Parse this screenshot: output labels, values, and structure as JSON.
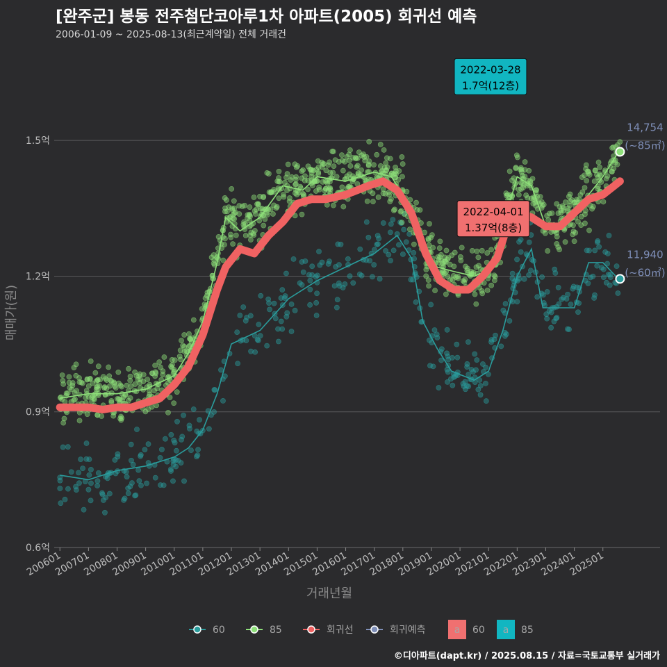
{
  "title": "[완주군] 봉동 전주첨단코아루1차 아파트(2005) 회귀선 예측",
  "subtitle": "2006-01-09 ~ 2025-08-13(최근계약일) 전체 거래건",
  "credit": "©디아파트(dapt.kr) / 2025.08.15 / 자료=국토교통부 실거래가",
  "colors": {
    "s60": "#2a9d9d",
    "s85": "#8ee07a",
    "reg": "#f06262",
    "pred": "#7f8fb8",
    "box60": "#f07070",
    "box85": "#11b6c1"
  },
  "chart_data": {
    "type": "scatter",
    "xlabel": "거래년월",
    "ylabel": "매매가(원)",
    "ylim": [
      0.6,
      1.7
    ],
    "yticks": [
      {
        "v": 0.6,
        "label": "0.6억"
      },
      {
        "v": 0.9,
        "label": "0.9억"
      },
      {
        "v": 1.2,
        "label": "1.2억"
      },
      {
        "v": 1.5,
        "label": "1.5억"
      }
    ],
    "xticks": [
      "200601",
      "200701",
      "200801",
      "200901",
      "201001",
      "201101",
      "201201",
      "201301",
      "201401",
      "201501",
      "201601",
      "201701",
      "201801",
      "201901",
      "202001",
      "202101",
      "202201",
      "202301",
      "202401",
      "202501"
    ],
    "series": [
      {
        "name": "60",
        "key": "s60",
        "trend": [
          [
            2006.0,
            0.76
          ],
          [
            2007.0,
            0.75
          ],
          [
            2007.5,
            0.76
          ],
          [
            2008.0,
            0.77
          ],
          [
            2009.0,
            0.78
          ],
          [
            2010.0,
            0.8
          ],
          [
            2010.5,
            0.82
          ],
          [
            2011.0,
            0.86
          ],
          [
            2011.5,
            0.94
          ],
          [
            2012.0,
            1.05
          ],
          [
            2013.0,
            1.08
          ],
          [
            2014.0,
            1.15
          ],
          [
            2015.0,
            1.19
          ],
          [
            2016.0,
            1.22
          ],
          [
            2017.0,
            1.25
          ],
          [
            2017.8,
            1.29
          ],
          [
            2018.3,
            1.24
          ],
          [
            2018.7,
            1.1
          ],
          [
            2019.2,
            1.04
          ],
          [
            2019.7,
            0.99
          ],
          [
            2020.5,
            0.97
          ],
          [
            2021.0,
            0.99
          ],
          [
            2021.5,
            1.08
          ],
          [
            2022.0,
            1.2
          ],
          [
            2022.5,
            1.26
          ],
          [
            2022.9,
            1.13
          ],
          [
            2023.5,
            1.13
          ],
          [
            2024.0,
            1.13
          ],
          [
            2024.5,
            1.23
          ],
          [
            2025.0,
            1.23
          ],
          [
            2025.6,
            1.19
          ]
        ]
      },
      {
        "name": "85",
        "key": "s85",
        "trend": [
          [
            2006.0,
            0.93
          ],
          [
            2007.0,
            0.94
          ],
          [
            2008.0,
            0.94
          ],
          [
            2009.0,
            0.95
          ],
          [
            2010.0,
            0.98
          ],
          [
            2010.5,
            1.03
          ],
          [
            2011.0,
            1.1
          ],
          [
            2011.5,
            1.23
          ],
          [
            2011.8,
            1.33
          ],
          [
            2012.3,
            1.3
          ],
          [
            2013.0,
            1.33
          ],
          [
            2013.8,
            1.4
          ],
          [
            2014.5,
            1.39
          ],
          [
            2015.0,
            1.42
          ],
          [
            2016.0,
            1.41
          ],
          [
            2017.0,
            1.43
          ],
          [
            2017.6,
            1.42
          ],
          [
            2018.3,
            1.35
          ],
          [
            2018.8,
            1.26
          ],
          [
            2019.2,
            1.22
          ],
          [
            2019.8,
            1.21
          ],
          [
            2020.5,
            1.2
          ],
          [
            2021.2,
            1.22
          ],
          [
            2021.6,
            1.33
          ],
          [
            2022.0,
            1.42
          ],
          [
            2022.5,
            1.4
          ],
          [
            2023.0,
            1.31
          ],
          [
            2023.6,
            1.32
          ],
          [
            2024.0,
            1.35
          ],
          [
            2024.5,
            1.38
          ],
          [
            2025.0,
            1.42
          ],
          [
            2025.6,
            1.48
          ]
        ]
      }
    ],
    "regression": [
      [
        2006.0,
        0.91
      ],
      [
        2007.0,
        0.91
      ],
      [
        2007.5,
        0.905
      ],
      [
        2008.0,
        0.91
      ],
      [
        2008.5,
        0.91
      ],
      [
        2009.0,
        0.92
      ],
      [
        2009.5,
        0.93
      ],
      [
        2010.0,
        0.96
      ],
      [
        2010.5,
        1.0
      ],
      [
        2011.0,
        1.07
      ],
      [
        2011.5,
        1.17
      ],
      [
        2011.8,
        1.22
      ],
      [
        2012.3,
        1.26
      ],
      [
        2012.8,
        1.25
      ],
      [
        2013.3,
        1.29
      ],
      [
        2013.8,
        1.32
      ],
      [
        2014.3,
        1.36
      ],
      [
        2014.8,
        1.37
      ],
      [
        2015.3,
        1.37
      ],
      [
        2016.0,
        1.38
      ],
      [
        2016.8,
        1.4
      ],
      [
        2017.3,
        1.41
      ],
      [
        2017.8,
        1.39
      ],
      [
        2018.3,
        1.34
      ],
      [
        2018.8,
        1.25
      ],
      [
        2019.3,
        1.19
      ],
      [
        2019.8,
        1.17
      ],
      [
        2020.3,
        1.17
      ],
      [
        2020.8,
        1.2
      ],
      [
        2021.3,
        1.24
      ],
      [
        2021.6,
        1.3
      ],
      [
        2022.0,
        1.34
      ],
      [
        2022.5,
        1.33
      ],
      [
        2023.0,
        1.31
      ],
      [
        2023.5,
        1.31
      ],
      [
        2024.0,
        1.34
      ],
      [
        2024.5,
        1.37
      ],
      [
        2025.0,
        1.38
      ],
      [
        2025.6,
        1.41
      ]
    ],
    "annotations": [
      {
        "key": "box85",
        "date": "2022-03-28",
        "value": "1.7억(12층)",
        "x": 2019.9,
        "y": 1.681
      },
      {
        "key": "box60",
        "date": "2022-04-01",
        "value": "1.37억(8층)",
        "x": 2020.0,
        "y": 1.367
      }
    ],
    "end_labels": [
      {
        "key": "s85",
        "value": "14,754",
        "unit": "(~85㎡)",
        "x": 2025.6,
        "y": 1.475
      },
      {
        "key": "s60",
        "value": "11,940",
        "unit": "(~60㎡)",
        "x": 2025.6,
        "y": 1.194
      }
    ],
    "legend": [
      {
        "label": "60",
        "key": "s60",
        "style": "line"
      },
      {
        "label": "85",
        "key": "s85",
        "style": "line"
      },
      {
        "label": "회귀선",
        "key": "reg",
        "style": "line"
      },
      {
        "label": "회귀예측",
        "key": "pred",
        "style": "line"
      },
      {
        "label": "60",
        "key": "box60",
        "style": "box",
        "glyph": "a"
      },
      {
        "label": "85",
        "key": "box85",
        "style": "box",
        "glyph": "a"
      }
    ]
  }
}
